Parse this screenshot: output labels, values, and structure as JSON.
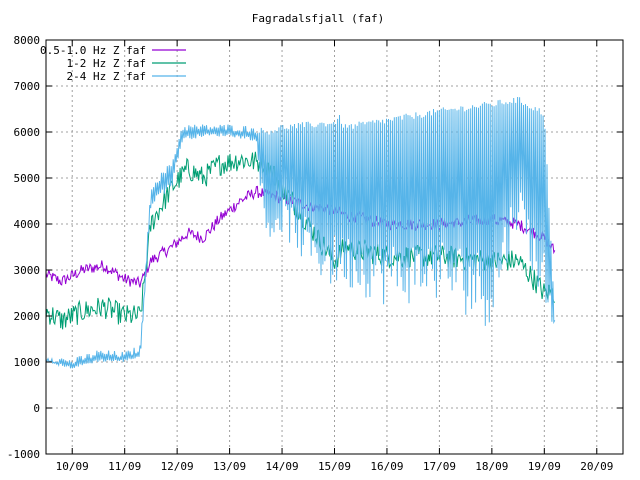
{
  "chart_data": {
    "type": "line",
    "title": "Fagradalsfjall (faf)",
    "xlabel": "",
    "ylabel": "",
    "x_ticks": [
      "10/09",
      "11/09",
      "12/09",
      "13/09",
      "14/09",
      "15/09",
      "16/09",
      "17/09",
      "18/09",
      "19/09",
      "20/09"
    ],
    "xlim": [
      "09/09 12:00",
      "20/09 12:00"
    ],
    "ylim": [
      -1000,
      8000
    ],
    "y_ticks": [
      -1000,
      0,
      1000,
      2000,
      3000,
      4000,
      5000,
      6000,
      7000,
      8000
    ],
    "grid": true,
    "legend_position": "top-left",
    "x_unit": "days after 10/09 00:00",
    "series": [
      {
        "name": "0.5-1.0 Hz Z faf",
        "color": "#9400d3",
        "x": [
          -0.5,
          -0.2,
          0.2,
          0.6,
          1.0,
          1.3,
          1.5,
          1.9,
          2.2,
          2.5,
          2.8,
          3.2,
          3.5,
          3.7,
          4.5,
          5.0,
          5.2,
          6.0,
          7.0,
          8.0,
          8.5,
          9.0,
          9.2
        ],
        "values": [
          2900,
          2750,
          3000,
          3100,
          2800,
          2700,
          3200,
          3500,
          3800,
          3700,
          4100,
          4500,
          4700,
          4650,
          4400,
          4300,
          4200,
          4000,
          4000,
          4100,
          4000,
          3700,
          3400
        ],
        "spread": 130
      },
      {
        "name": "1-2 Hz Z faf",
        "color": "#009e73",
        "x": [
          -0.5,
          -0.2,
          0.2,
          0.6,
          1.0,
          1.3,
          1.5,
          1.9,
          2.2,
          2.5,
          2.8,
          3.2,
          3.5,
          3.7,
          4.5,
          5.0,
          5.2,
          6.0,
          7.0,
          8.0,
          8.5,
          8.8,
          9.0,
          9.2
        ],
        "values": [
          2100,
          1900,
          2100,
          2200,
          2000,
          2000,
          4000,
          4800,
          5200,
          5000,
          5300,
          5400,
          5350,
          5300,
          4000,
          3200,
          3500,
          3300,
          3300,
          3200,
          3200,
          2800,
          2500,
          2500
        ],
        "spread": 250
      },
      {
        "name": "2-4 Hz Z faf",
        "color": "#56b4e9",
        "x": [
          -0.5,
          0.0,
          0.5,
          1.0,
          1.3,
          1.5,
          1.9,
          2.1,
          2.5,
          3.0,
          3.5,
          3.7,
          4.0,
          4.5,
          5.0,
          5.1,
          5.2,
          6.0,
          7.0,
          8.0,
          8.5,
          9.0,
          9.2
        ],
        "values": [
          1100,
          1000,
          1200,
          1150,
          1300,
          4800,
          5300,
          6100,
          6100,
          6100,
          6050,
          6000,
          6100,
          6150,
          6200,
          6300,
          6100,
          6250,
          6450,
          6600,
          6700,
          6400,
          1900
        ],
        "lower": [
          1000,
          850,
          1000,
          1000,
          1100,
          4400,
          4800,
          5800,
          5900,
          5900,
          5800,
          3500,
          3800,
          3000,
          2500,
          2700,
          2600,
          2200,
          2300,
          1700,
          4000,
          2000,
          1800
        ],
        "spread": 150
      }
    ]
  }
}
